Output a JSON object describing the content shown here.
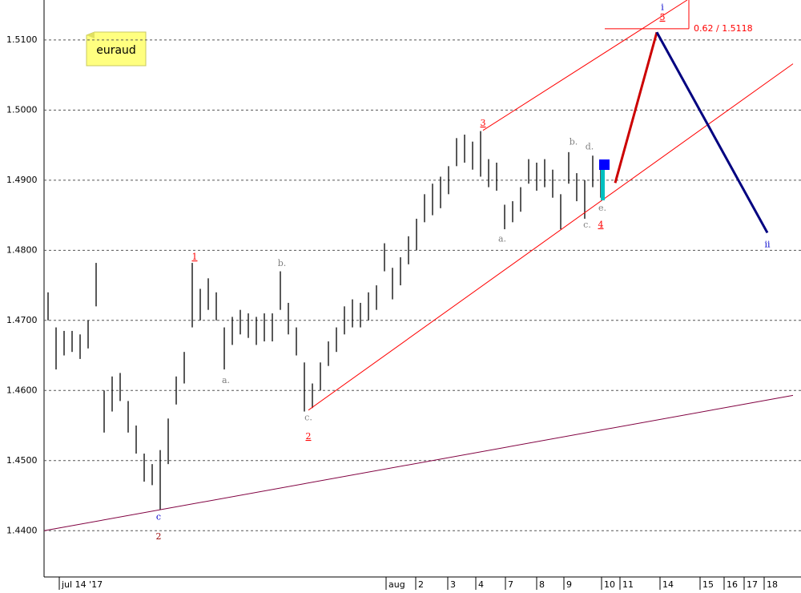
{
  "chart_data": {
    "type": "range",
    "symbol": "euraud",
    "xlim": [
      0,
      93.5
    ],
    "ylim": [
      1.4334,
      1.5157
    ],
    "yticks": [
      {
        "value": 1.44,
        "label": "1.4400"
      },
      {
        "value": 1.45,
        "label": "1.4500"
      },
      {
        "value": 1.46,
        "label": "1.4600"
      },
      {
        "value": 1.47,
        "label": "1.4700"
      },
      {
        "value": 1.48,
        "label": "1.4800"
      },
      {
        "value": 1.49,
        "label": "1.4900"
      },
      {
        "value": 1.5,
        "label": "1.5000"
      },
      {
        "value": 1.51,
        "label": "1.5100"
      }
    ],
    "xticks": [
      {
        "value": 2.5,
        "label": "jul 14 '17"
      },
      {
        "value": 43.3,
        "label": "aug"
      },
      {
        "value": 47,
        "label": "2"
      },
      {
        "value": 51,
        "label": "3"
      },
      {
        "value": 54.5,
        "label": "4"
      },
      {
        "value": 58.2,
        "label": "7"
      },
      {
        "value": 62.1,
        "label": "8"
      },
      {
        "value": 65.5,
        "label": "9"
      },
      {
        "value": 70.2,
        "label": "10"
      },
      {
        "value": 72.5,
        "label": "11"
      },
      {
        "value": 77.5,
        "label": "14"
      },
      {
        "value": 82.5,
        "label": "15"
      },
      {
        "value": 85.5,
        "label": "16"
      },
      {
        "value": 88,
        "label": "17"
      },
      {
        "value": 90.5,
        "label": "18"
      }
    ],
    "grid": true,
    "color": "#000000",
    "x": [
      0.5,
      1.5,
      2.5,
      3.5,
      4.5,
      5.5,
      6.5,
      7.5,
      8.5,
      9.5,
      10.5,
      11.5,
      12.5,
      13.5,
      14.5,
      15.5,
      16.5,
      17.5,
      18.5,
      19.5,
      20.5,
      21.5,
      22.5,
      23.5,
      24.5,
      25.5,
      26.5,
      27.5,
      28.5,
      29.5,
      30.5,
      31.5,
      32.5,
      33.5,
      34.5,
      35.5,
      36.5,
      37.5,
      38.5,
      39.5,
      40.5,
      41.5,
      42.5,
      43.5,
      44.5,
      45.5,
      46.5,
      47.5,
      48.5,
      49.5,
      50.5,
      51.5,
      52.5,
      53.5,
      54.5,
      55.5,
      56.5,
      57.5,
      58.5,
      59.5,
      60.5,
      61.5,
      62.5,
      63.5,
      64.5,
      65.5,
      66.5,
      67.5,
      68.5,
      69.5
    ],
    "high": [
      1.474,
      1.469,
      1.4685,
      1.4685,
      1.468,
      1.47,
      1.4782,
      1.46,
      1.462,
      1.4625,
      1.4585,
      1.455,
      1.451,
      1.4495,
      1.4515,
      1.456,
      1.462,
      1.4655,
      1.4782,
      1.4745,
      1.476,
      1.474,
      1.469,
      1.4705,
      1.4715,
      1.471,
      1.4705,
      1.471,
      1.471,
      1.477,
      1.4725,
      1.469,
      1.464,
      1.461,
      1.464,
      1.467,
      1.469,
      1.472,
      1.473,
      1.4725,
      1.474,
      1.475,
      1.481,
      1.4775,
      1.479,
      1.482,
      1.4845,
      1.488,
      1.4895,
      1.4905,
      1.492,
      1.496,
      1.4965,
      1.4955,
      1.497,
      1.493,
      1.4925,
      1.4865,
      1.487,
      1.489,
      1.493,
      1.4925,
      1.493,
      1.4915,
      1.488,
      1.494,
      1.491,
      1.49,
      1.4935,
      1.492
    ],
    "low": [
      1.47,
      1.463,
      1.465,
      1.4655,
      1.4645,
      1.466,
      1.472,
      1.454,
      1.457,
      1.4585,
      1.454,
      1.451,
      1.447,
      1.4465,
      1.443,
      1.4495,
      1.458,
      1.461,
      1.469,
      1.47,
      1.4715,
      1.47,
      1.463,
      1.4665,
      1.468,
      1.4675,
      1.4665,
      1.467,
      1.467,
      1.4715,
      1.468,
      1.465,
      1.457,
      1.4575,
      1.46,
      1.4635,
      1.4655,
      1.468,
      1.469,
      1.469,
      1.47,
      1.4715,
      1.477,
      1.473,
      1.475,
      1.478,
      1.48,
      1.484,
      1.485,
      1.486,
      1.488,
      1.492,
      1.4925,
      1.4915,
      1.4905,
      1.489,
      1.4885,
      1.483,
      1.484,
      1.4855,
      1.4895,
      1.4885,
      1.489,
      1.4875,
      1.483,
      1.4895,
      1.487,
      1.4845,
      1.489,
      1.4875
    ],
    "lines": [
      {
        "color": "#800040",
        "x": [
          0,
          93.5
        ],
        "y": [
          1.44,
          1.4593
        ]
      },
      {
        "color": "#ff0000",
        "x": [
          33,
          93.5
        ],
        "y": [
          1.4572,
          1.5066
        ]
      },
      {
        "color": "#ff0000",
        "x": [
          54.8,
          80.3
        ],
        "y": [
          1.4971,
          1.5157
        ]
      },
      {
        "color": "#cc0000",
        "x": [
          71.3,
          76.5
        ],
        "y": [
          1.4896,
          1.5111
        ]
      },
      {
        "color": "#000080",
        "x": [
          76.5,
          90.3
        ],
        "y": [
          1.5111,
          1.4825
        ]
      },
      {
        "color": "#ff0000",
        "x": [
          70,
          80.5
        ],
        "y": [
          1.5116,
          1.5116
        ]
      },
      {
        "color": "#ff0000",
        "x": [
          80.5,
          80.5
        ],
        "y": [
          1.5157,
          1.5116
        ]
      }
    ],
    "annotations": [
      {
        "text": "1",
        "x": 18.8,
        "y": 1.479,
        "color": "#ff0000"
      },
      {
        "text": "2",
        "x": 33,
        "y": 1.4534,
        "color": "#ff0000"
      },
      {
        "text": "3",
        "x": 54.8,
        "y": 1.4981,
        "color": "#ff0000"
      },
      {
        "text": "4",
        "x": 69.5,
        "y": 1.4836,
        "color": "#ff0000"
      },
      {
        "text": "5",
        "x": 77.2,
        "y": 1.5132,
        "color": "#ff0000"
      },
      {
        "text": "i",
        "x": 77.2,
        "y": 1.5146,
        "color": "#0000cc"
      },
      {
        "text": "ii",
        "x": 90.3,
        "y": 1.4808,
        "color": "#0000cc"
      },
      {
        "text": "c",
        "x": 14.3,
        "y": 1.4419,
        "color": "#0000cc"
      },
      {
        "text": "2",
        "x": 14.3,
        "y": 1.4391,
        "color": "#990000"
      },
      {
        "text": "a.",
        "x": 22.7,
        "y": 1.4614,
        "color": "#808080"
      },
      {
        "text": "b.",
        "x": 29.7,
        "y": 1.4781,
        "color": "#808080"
      },
      {
        "text": "c.",
        "x": 33,
        "y": 1.4561,
        "color": "#808080"
      },
      {
        "text": "a.",
        "x": 57.2,
        "y": 1.4816,
        "color": "#808080"
      },
      {
        "text": "b.",
        "x": 66.1,
        "y": 1.4954,
        "color": "#808080"
      },
      {
        "text": "d.",
        "x": 68.1,
        "y": 1.4947,
        "color": "#808080"
      },
      {
        "text": "c.",
        "x": 67.8,
        "y": 1.4836,
        "color": "#808080"
      },
      {
        "text": "e.",
        "x": 69.7,
        "y": 1.486,
        "color": "#808080"
      },
      {
        "text": "0.62 / 1.5118",
        "x": 81.1,
        "y": 1.5116,
        "color": "#ff0000"
      }
    ]
  }
}
